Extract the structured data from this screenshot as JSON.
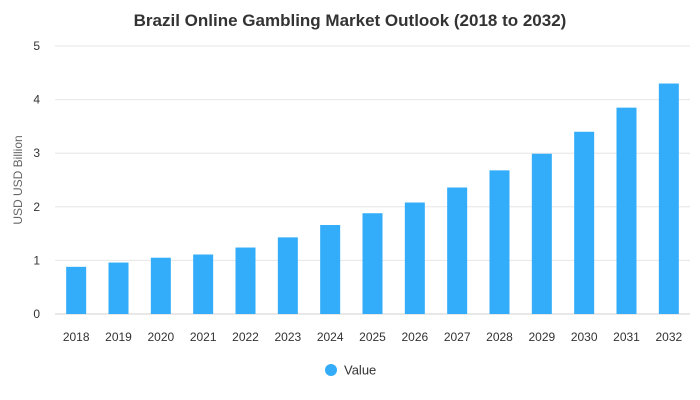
{
  "chart_data": {
    "type": "bar",
    "title": "Brazil Online Gambling Market Outlook (2018 to 2032)",
    "xlabel": "",
    "ylabel": "USD USD Billion",
    "categories": [
      "2018",
      "2019",
      "2020",
      "2021",
      "2022",
      "2023",
      "2024",
      "2025",
      "2026",
      "2027",
      "2028",
      "2029",
      "2030",
      "2031",
      "2032"
    ],
    "series": [
      {
        "name": "Value",
        "color": "#33adfa",
        "values": [
          0.88,
          0.96,
          1.05,
          1.11,
          1.24,
          1.43,
          1.66,
          1.88,
          2.08,
          2.36,
          2.68,
          2.99,
          3.4,
          3.85,
          4.3
        ]
      }
    ],
    "ylim": [
      0,
      5
    ],
    "yticks": [
      0,
      1,
      2,
      3,
      4,
      5
    ],
    "grid": true,
    "legend": "bottom-center"
  }
}
